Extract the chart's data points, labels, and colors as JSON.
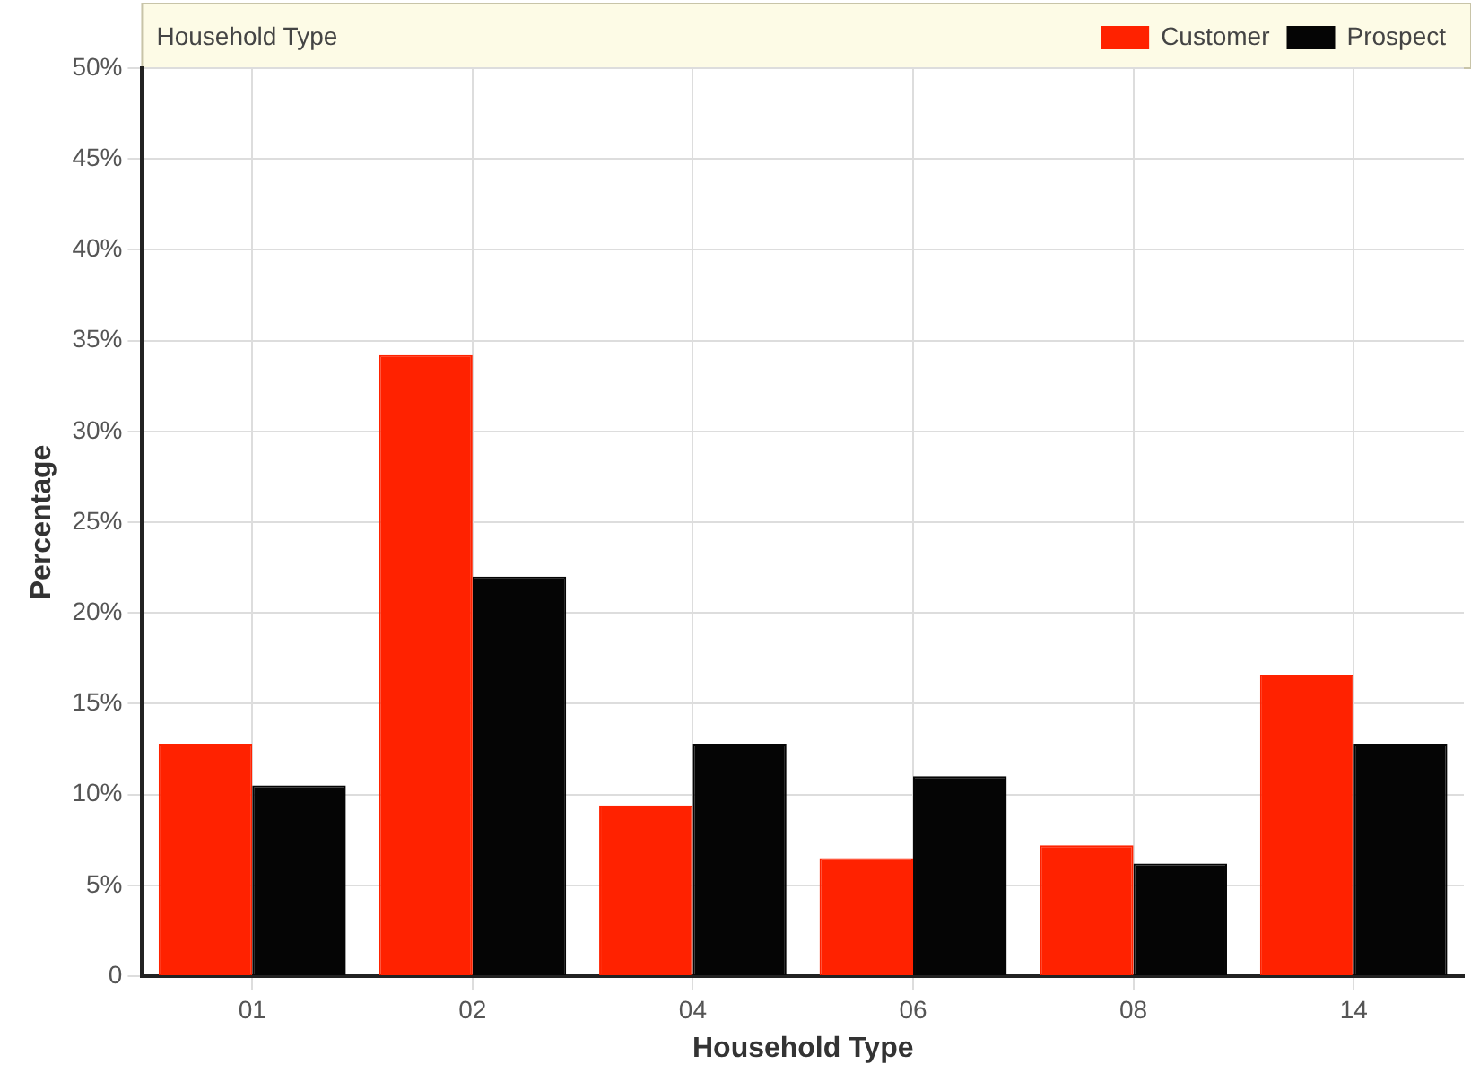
{
  "chart_data": {
    "type": "bar",
    "title": "Household Type",
    "xlabel": "Household Type",
    "ylabel": "Percentage",
    "categories": [
      "01",
      "02",
      "04",
      "06",
      "08",
      "14"
    ],
    "series": [
      {
        "name": "Customer",
        "color": "#ff2200",
        "values": [
          12.8,
          34.2,
          9.4,
          6.5,
          7.2,
          16.6
        ]
      },
      {
        "name": "Prospect",
        "color": "#050505",
        "values": [
          10.5,
          22.0,
          12.8,
          11.0,
          6.2,
          12.8
        ]
      }
    ],
    "ylim": [
      0,
      50
    ],
    "yticks": [
      0,
      {
        "value": 5,
        "label": "5%"
      },
      {
        "value": 10,
        "label": "10%"
      },
      {
        "value": 15,
        "label": "15%"
      },
      {
        "value": 20,
        "label": "20%"
      },
      {
        "value": 25,
        "label": "25%"
      },
      {
        "value": 30,
        "label": "30%"
      },
      {
        "value": 35,
        "label": "35%"
      },
      {
        "value": 40,
        "label": "40%"
      },
      {
        "value": 45,
        "label": "45%"
      },
      {
        "value": 50,
        "label": "50%"
      }
    ],
    "grid": true,
    "legend": "top right"
  }
}
